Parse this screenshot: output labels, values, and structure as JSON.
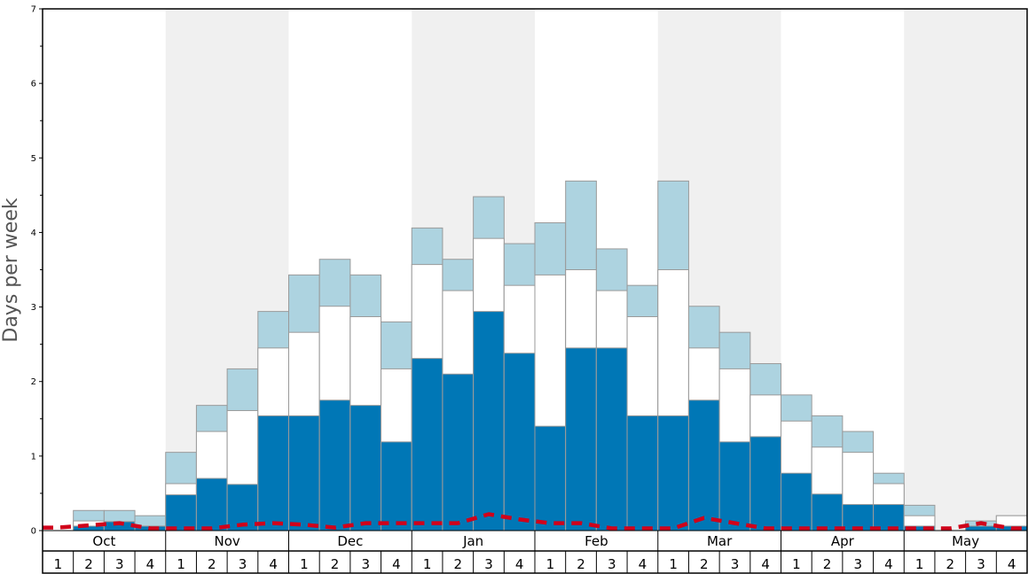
{
  "chart_data": {
    "type": "bar",
    "ylabel": "Days per week",
    "ylim": [
      0,
      7
    ],
    "yticks": [
      "0",
      "1",
      "2",
      "3",
      "4",
      "5",
      "6",
      "7"
    ],
    "months": [
      "Oct",
      "Nov",
      "Dec",
      "Jan",
      "Feb",
      "Mar",
      "Apr",
      "May"
    ],
    "week_labels": [
      "1",
      "2",
      "3",
      "4"
    ],
    "shaded_months": [
      "Nov",
      "Jan",
      "Mar",
      "May"
    ],
    "colors": {
      "dark": "#0077b6",
      "mid": "#ffffff",
      "light": "#add3e0",
      "line": "#d0021b",
      "shade": "#f0f0f0"
    },
    "series": [
      {
        "values": [
          0,
          0.06,
          0.12,
          0.06,
          0.48,
          0.7,
          0.62,
          1.54,
          1.54,
          1.75,
          1.68,
          1.19,
          2.31,
          2.1,
          2.94,
          2.38,
          1.4,
          2.45,
          2.45,
          1.54,
          1.54,
          1.75,
          1.19,
          1.26,
          0.77,
          0.49,
          0.35,
          0.35,
          0.06,
          0,
          0.06,
          0.06
        ]
      },
      {
        "values": [
          0,
          0.13,
          0.12,
          0.06,
          0.63,
          1.33,
          1.61,
          2.45,
          2.66,
          3.01,
          2.87,
          2.17,
          3.57,
          3.22,
          3.92,
          3.29,
          3.43,
          3.5,
          3.22,
          2.87,
          3.5,
          2.45,
          2.17,
          1.82,
          1.47,
          1.12,
          1.05,
          0.63,
          0.2,
          0,
          0.06,
          0.2
        ]
      },
      {
        "values": [
          0,
          0.27,
          0.27,
          0.2,
          1.05,
          1.68,
          2.17,
          2.94,
          3.43,
          3.64,
          3.43,
          2.8,
          4.06,
          3.64,
          4.48,
          3.85,
          4.13,
          4.69,
          3.78,
          3.29,
          4.69,
          3.01,
          2.66,
          2.24,
          1.82,
          1.54,
          1.33,
          0.77,
          0.34,
          0,
          0.13,
          0.2
        ]
      },
      {
        "values": [
          0.04,
          0.07,
          0.1,
          0.03,
          0.03,
          0.03,
          0.08,
          0.1,
          0.08,
          0.04,
          0.1,
          0.1,
          0.1,
          0.1,
          0.22,
          0.15,
          0.1,
          0.1,
          0.03,
          0.03,
          0.03,
          0.17,
          0.1,
          0.03,
          0.03,
          0.03,
          0.03,
          0.03,
          0.03,
          0.03,
          0.1,
          0.03
        ]
      }
    ]
  }
}
